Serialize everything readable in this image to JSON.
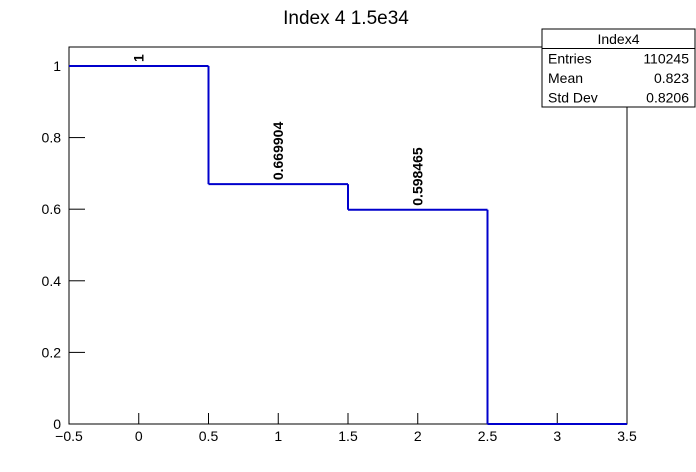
{
  "chart_data": {
    "type": "histogram",
    "title": "Index 4 1.5e34",
    "bins": [
      -0.5,
      0.5,
      1.5,
      2.5,
      3.5
    ],
    "values": [
      1,
      0.669904,
      0.598465,
      0
    ],
    "value_labels": [
      "1",
      "0.669904",
      "0.598465",
      null
    ],
    "color": "#0000cc",
    "xlim": [
      -0.5,
      3.5
    ],
    "xticks": [
      {
        "value": -0.5,
        "label": "−0.5"
      },
      0,
      0.5,
      1,
      1.5,
      2,
      2.5,
      3,
      3.5
    ],
    "ylim": [
      0,
      1.053
    ],
    "yticks": [
      0,
      0.2,
      0.4,
      0.6,
      0.8,
      1
    ],
    "stats": {
      "title": "Index4",
      "rows": [
        [
          "Entries",
          "110245"
        ],
        [
          "Mean",
          "0.823"
        ],
        [
          "Std Dev",
          "0.8206"
        ]
      ]
    }
  }
}
